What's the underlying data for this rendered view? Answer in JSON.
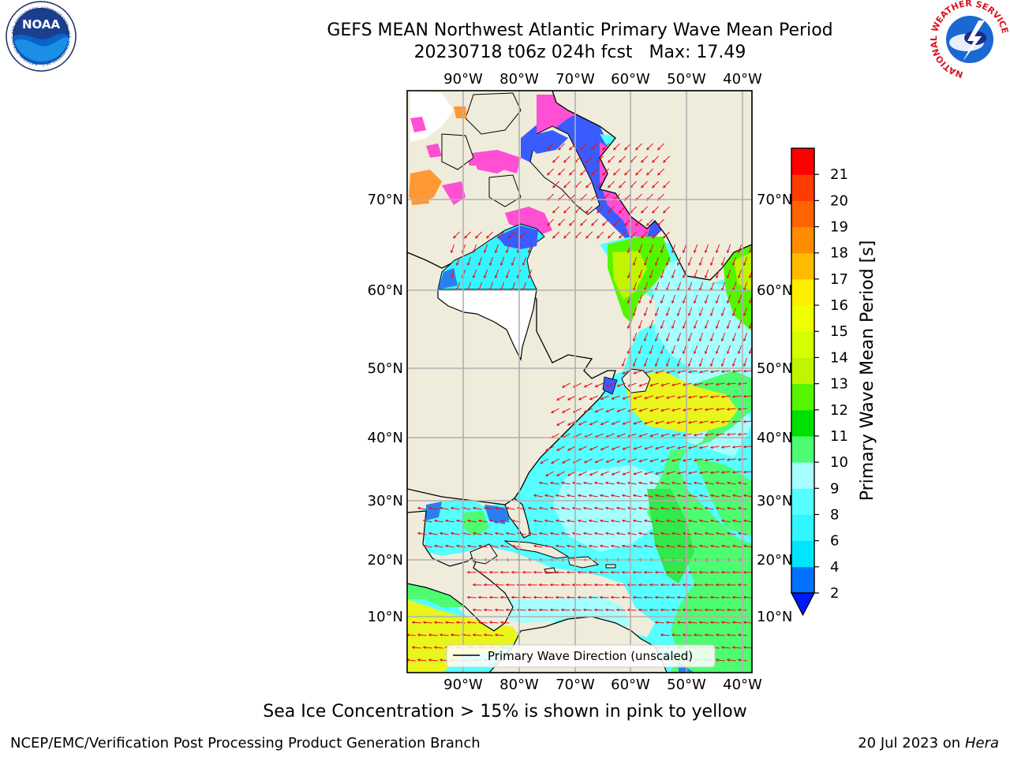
{
  "title": {
    "line1": "GEFS MEAN Northwest Atlantic Primary Wave Mean Period",
    "date_run": "20230718 t06z 024h fcst",
    "max_label": "Max: 17.49"
  },
  "logos": {
    "left": {
      "name": "noaa-logo",
      "text": "NOAA",
      "ring_text": "NATIONAL OCEANIC AND ATMOSPHERIC ADMINISTRATION · U.S. DEPARTMENT OF COMMERCE"
    },
    "right": {
      "name": "nws-logo",
      "ring_text": "NATIONAL WEATHER SERVICE"
    }
  },
  "map": {
    "lon_ticks": [
      "90°W",
      "80°W",
      "70°W",
      "60°W",
      "50°W",
      "40°W"
    ],
    "lat_ticks": [
      "70°N",
      "60°N",
      "50°N",
      "40°N",
      "30°N",
      "20°N",
      "10°N"
    ],
    "legend": "Primary Wave Direction (unscaled)",
    "colors": {
      "land": "#efecdc",
      "ocean_low": "#2a7ff0",
      "cyan": "#55ffff",
      "lightcyan": "#a6ffff",
      "green": "#33e84a",
      "yellow": "#e9f51c",
      "ice_pink": "#ff4fd3",
      "ice_blue": "#3a5cff",
      "arrow": "#e8101a",
      "grid": "#b0b0b0"
    }
  },
  "colorbar": {
    "label": "Primary Wave Mean Period [s]",
    "ticks": [
      "2",
      "4",
      "6",
      "8",
      "9",
      "10",
      "11",
      "12",
      "13",
      "14",
      "15",
      "16",
      "17",
      "18",
      "19",
      "20",
      "21"
    ],
    "segment_colors": [
      "#0072ff",
      "#00e5ff",
      "#33f5ff",
      "#55ffff",
      "#a6ffff",
      "#4dfc70",
      "#00e000",
      "#55f500",
      "#bff500",
      "#d4ff00",
      "#eeff00",
      "#ffee00",
      "#ffbb00",
      "#ff8c00",
      "#ff6400",
      "#ff3c00",
      "#ff0000"
    ],
    "extend_color": "#0019ff"
  },
  "footer": {
    "sea_ice_note": "Sea Ice Concentration > 15% is shown in pink to yellow",
    "left": "NCEP/EMC/Verification Post Processing Product Generation Branch",
    "right_date": "20 Jul 2023 on",
    "right_host": "Hera"
  }
}
